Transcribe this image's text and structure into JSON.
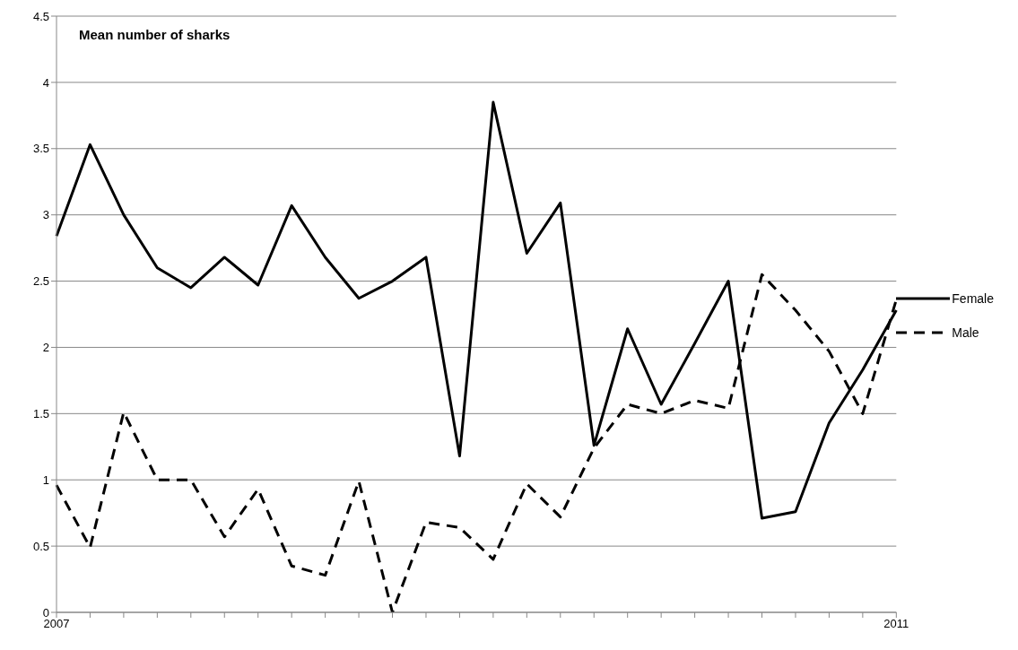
{
  "chart_data": {
    "type": "line",
    "ylabel": "Mean number of sharks",
    "categories": [
      "2007",
      null,
      null,
      null,
      null,
      null,
      null,
      null,
      null,
      null,
      null,
      null,
      null,
      null,
      null,
      null,
      null,
      null,
      null,
      null,
      null,
      null,
      null,
      null,
      null,
      "2011"
    ],
    "series": [
      {
        "name": "Female",
        "color": "#000000",
        "line_style": "solid",
        "values": [
          2.84,
          3.53,
          3.0,
          2.6,
          2.45,
          2.68,
          2.47,
          3.07,
          2.68,
          2.37,
          2.5,
          2.68,
          1.18,
          3.85,
          2.71,
          3.09,
          1.26,
          2.14,
          1.57,
          2.03,
          2.5,
          0.71,
          0.76,
          1.43,
          1.83,
          2.28
        ]
      },
      {
        "name": "Male",
        "color": "#000000",
        "line_style": "dashed",
        "values": [
          0.96,
          0.49,
          1.51,
          1.0,
          1.0,
          0.57,
          0.93,
          0.35,
          0.28,
          0.99,
          0.0,
          0.68,
          0.64,
          0.4,
          0.97,
          0.72,
          1.24,
          1.57,
          1.5,
          1.6,
          1.54,
          2.55,
          2.28,
          1.97,
          1.5,
          2.36
        ]
      }
    ],
    "ylim": [
      0,
      4.5
    ],
    "yticks": [
      0,
      0.5,
      1,
      1.5,
      2,
      2.5,
      3,
      3.5,
      4,
      4.5
    ],
    "grid": "y",
    "legend": "right",
    "marker": "none"
  }
}
